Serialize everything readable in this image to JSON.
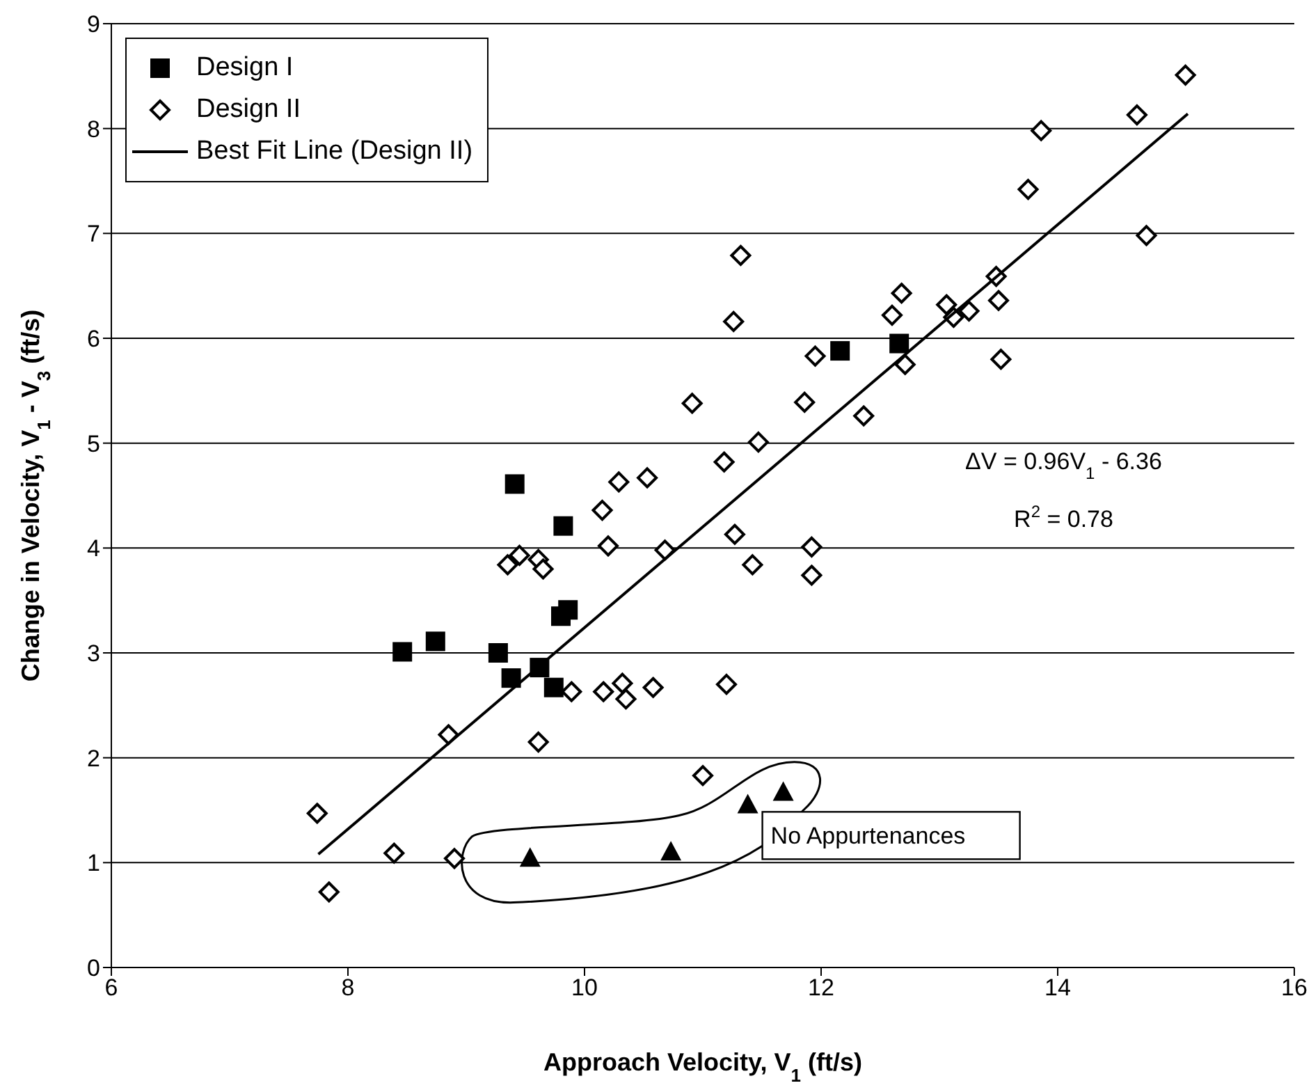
{
  "chart_data": {
    "type": "scatter",
    "xlabel": "Approach Velocity, V$_{1}$ (ft/s)",
    "ylabel": "Change in Velocity, V$_{1}$ - V$_{3}$ (ft/s)",
    "xlim": [
      6,
      16
    ],
    "xticks": [
      6,
      8,
      10,
      12,
      14,
      16
    ],
    "ylim": [
      0,
      9
    ],
    "yticks": [
      0,
      1,
      2,
      3,
      4,
      5,
      6,
      7,
      8,
      9
    ],
    "grid": "y",
    "legend": "top left",
    "series": [
      {
        "name": "Design I",
        "type": "scatter",
        "marker": "square",
        "color": "#000000",
        "x": [
          9.41,
          9.82,
          9.86,
          9.8,
          8.46,
          8.74,
          9.27,
          9.38,
          9.62,
          9.74,
          12.16,
          12.66
        ],
        "values": [
          4.61,
          4.21,
          3.41,
          3.35,
          3.01,
          3.11,
          3.0,
          2.76,
          2.86,
          2.67,
          5.88,
          5.95
        ]
      },
      {
        "name": "Design II",
        "type": "scatter",
        "marker": "diamond",
        "color": "#000000",
        "x": [
          11.18,
          10.29,
          10.53,
          10.15,
          11.27,
          10.2,
          10.68,
          9.45,
          9.35,
          9.61,
          9.65,
          9.89,
          10.16,
          10.32,
          10.35,
          10.58,
          11.2,
          8.85,
          9.61,
          11.0,
          7.74,
          7.84,
          8.39,
          8.9,
          13.75,
          11.32,
          13.48,
          12.68,
          12.6,
          11.26,
          13.06,
          13.12,
          13.25,
          13.5,
          11.95,
          12.71,
          13.52,
          10.91,
          11.86,
          12.36,
          11.47,
          11.92,
          11.92,
          11.42,
          15.08,
          14.67,
          13.86,
          14.75
        ],
        "values": [
          4.82,
          4.63,
          4.67,
          4.36,
          4.13,
          4.02,
          3.98,
          3.93,
          3.84,
          3.89,
          3.8,
          2.63,
          2.63,
          2.71,
          2.56,
          2.67,
          2.7,
          2.22,
          2.15,
          1.83,
          1.47,
          0.72,
          1.09,
          1.04,
          7.42,
          6.79,
          6.59,
          6.43,
          6.22,
          6.16,
          6.32,
          6.2,
          6.26,
          6.36,
          5.83,
          5.75,
          5.8,
          5.38,
          5.39,
          5.26,
          5.01,
          4.01,
          3.74,
          3.84,
          8.51,
          8.13,
          7.98,
          6.98
        ]
      },
      {
        "type": "scatter",
        "marker": "triangle",
        "color": "#000000",
        "x": [
          9.54,
          10.73,
          11.38,
          11.68
        ],
        "values": [
          1.04,
          1.1,
          1.55,
          1.67
        ]
      },
      {
        "name": "Best Fit Line (Design II)",
        "type": "line",
        "marker": "none",
        "line_style": "solid",
        "color": "#000000",
        "x": [
          7.75,
          15.1
        ],
        "values": [
          1.08,
          8.14
        ]
      }
    ],
    "annotations": [
      "ΔV = 0.96V$_{1}$ - 6.36",
      "R$^{2}$ = 0.78",
      {
        "text": "No Appurtenances",
        "x": 11.68,
        "y": 1.67
      }
    ]
  }
}
